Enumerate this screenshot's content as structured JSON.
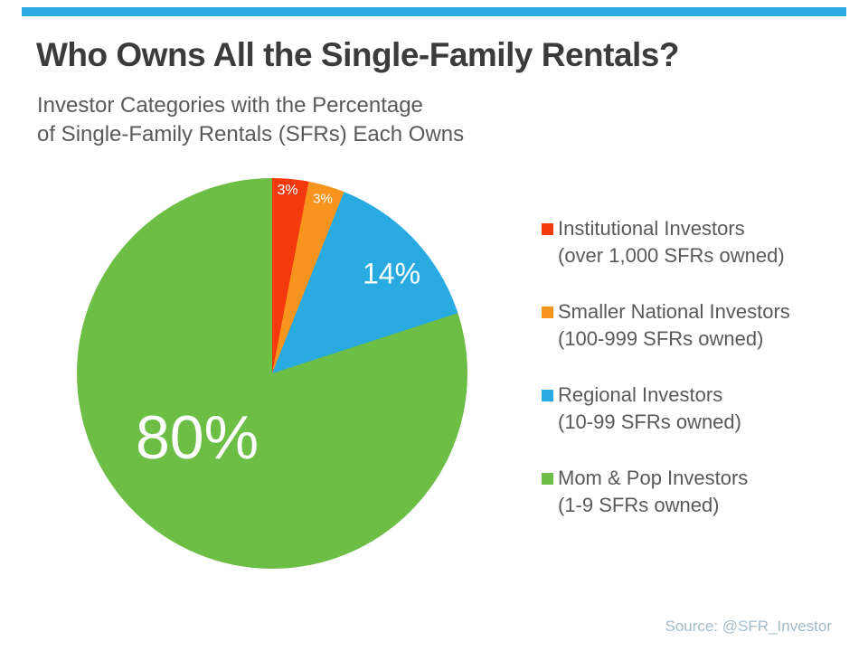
{
  "theme": {
    "accent_color": "#29ABE2",
    "title_color": "#3B3B3B",
    "text_color": "#595959",
    "source_color": "#A3BCCB",
    "background_color": "#FFFFFF"
  },
  "header": {
    "title": "Who Owns All the Single-Family Rentals?",
    "subtitle_line1": "Investor Categories with the Percentage",
    "subtitle_line2": "of Single-Family Rentals (SFRs) Each Owns"
  },
  "chart_data": {
    "type": "pie",
    "title": "Who Owns All the Single-Family Rentals?",
    "start_angle_deg": 0,
    "direction": "clockwise",
    "legend_position": "right",
    "units": "percent",
    "slices": [
      {
        "name": "Institutional Investors",
        "detail": "(over 1,000 SFRs owned)",
        "value": 3,
        "percent_label": "3%",
        "color": "#F23A0C"
      },
      {
        "name": "Smaller National Investors",
        "detail": "(100-999 SFRs owned)",
        "value": 3,
        "percent_label": "3%",
        "color": "#F7941E"
      },
      {
        "name": "Regional Investors",
        "detail": "(10-99 SFRs owned)",
        "value": 14,
        "percent_label": "14%",
        "color": "#29ABE2"
      },
      {
        "name": "Mom & Pop Investors",
        "detail": "(1-9 SFRs owned)",
        "value": 80,
        "percent_label": "80%",
        "color": "#6CBE45"
      }
    ]
  },
  "footer": {
    "source": "Source: @SFR_Investor"
  }
}
